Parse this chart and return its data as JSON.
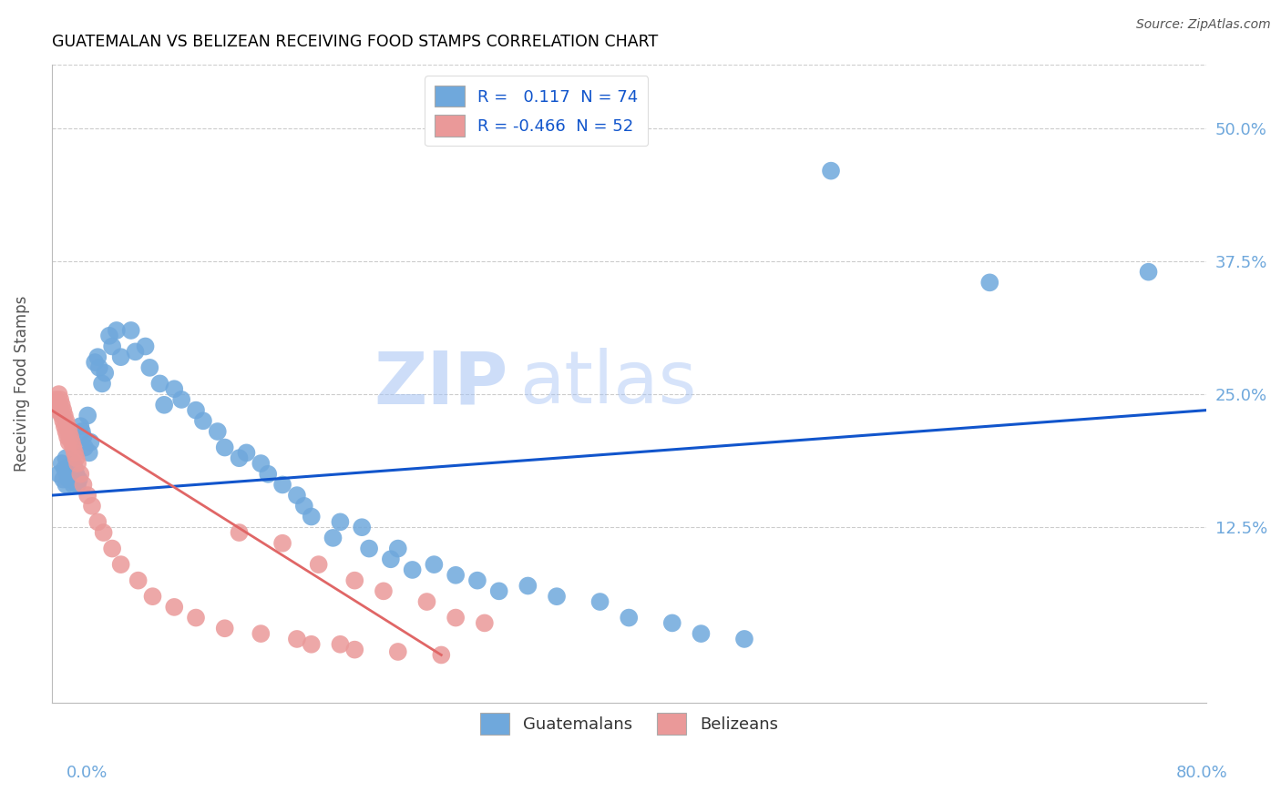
{
  "title": "GUATEMALAN VS BELIZEAN RECEIVING FOOD STAMPS CORRELATION CHART",
  "source": "Source: ZipAtlas.com",
  "ylabel": "Receiving Food Stamps",
  "ytick_labels": [
    "12.5%",
    "25.0%",
    "37.5%",
    "50.0%"
  ],
  "ytick_values": [
    0.125,
    0.25,
    0.375,
    0.5
  ],
  "xlim": [
    0.0,
    0.8
  ],
  "ylim": [
    -0.04,
    0.56
  ],
  "blue_color": "#6fa8dc",
  "pink_color": "#ea9999",
  "blue_line_color": "#1155cc",
  "pink_line_color": "#e06666",
  "background_color": "#ffffff",
  "grid_color": "#cccccc",
  "axis_label_color": "#6fa8dc",
  "title_color": "#000000",
  "guat_points": [
    [
      0.005,
      0.175
    ],
    [
      0.007,
      0.185
    ],
    [
      0.008,
      0.17
    ],
    [
      0.009,
      0.18
    ],
    [
      0.01,
      0.19
    ],
    [
      0.01,
      0.165
    ],
    [
      0.011,
      0.175
    ],
    [
      0.012,
      0.17
    ],
    [
      0.013,
      0.18
    ],
    [
      0.014,
      0.175
    ],
    [
      0.015,
      0.185
    ],
    [
      0.015,
      0.165
    ],
    [
      0.016,
      0.18
    ],
    [
      0.017,
      0.175
    ],
    [
      0.018,
      0.165
    ],
    [
      0.019,
      0.17
    ],
    [
      0.02,
      0.22
    ],
    [
      0.021,
      0.215
    ],
    [
      0.022,
      0.21
    ],
    [
      0.023,
      0.2
    ],
    [
      0.025,
      0.23
    ],
    [
      0.026,
      0.195
    ],
    [
      0.027,
      0.205
    ],
    [
      0.03,
      0.28
    ],
    [
      0.032,
      0.285
    ],
    [
      0.033,
      0.275
    ],
    [
      0.035,
      0.26
    ],
    [
      0.037,
      0.27
    ],
    [
      0.04,
      0.305
    ],
    [
      0.042,
      0.295
    ],
    [
      0.045,
      0.31
    ],
    [
      0.048,
      0.285
    ],
    [
      0.055,
      0.31
    ],
    [
      0.058,
      0.29
    ],
    [
      0.065,
      0.295
    ],
    [
      0.068,
      0.275
    ],
    [
      0.075,
      0.26
    ],
    [
      0.078,
      0.24
    ],
    [
      0.085,
      0.255
    ],
    [
      0.09,
      0.245
    ],
    [
      0.1,
      0.235
    ],
    [
      0.105,
      0.225
    ],
    [
      0.115,
      0.215
    ],
    [
      0.12,
      0.2
    ],
    [
      0.13,
      0.19
    ],
    [
      0.135,
      0.195
    ],
    [
      0.145,
      0.185
    ],
    [
      0.15,
      0.175
    ],
    [
      0.16,
      0.165
    ],
    [
      0.17,
      0.155
    ],
    [
      0.175,
      0.145
    ],
    [
      0.18,
      0.135
    ],
    [
      0.195,
      0.115
    ],
    [
      0.2,
      0.13
    ],
    [
      0.215,
      0.125
    ],
    [
      0.22,
      0.105
    ],
    [
      0.235,
      0.095
    ],
    [
      0.24,
      0.105
    ],
    [
      0.25,
      0.085
    ],
    [
      0.265,
      0.09
    ],
    [
      0.28,
      0.08
    ],
    [
      0.295,
      0.075
    ],
    [
      0.31,
      0.065
    ],
    [
      0.33,
      0.07
    ],
    [
      0.35,
      0.06
    ],
    [
      0.38,
      0.055
    ],
    [
      0.4,
      0.04
    ],
    [
      0.43,
      0.035
    ],
    [
      0.45,
      0.025
    ],
    [
      0.48,
      0.02
    ],
    [
      0.54,
      0.46
    ],
    [
      0.65,
      0.355
    ],
    [
      0.76,
      0.365
    ]
  ],
  "beli_points": [
    [
      0.003,
      0.245
    ],
    [
      0.004,
      0.235
    ],
    [
      0.005,
      0.25
    ],
    [
      0.005,
      0.24
    ],
    [
      0.006,
      0.245
    ],
    [
      0.006,
      0.235
    ],
    [
      0.007,
      0.24
    ],
    [
      0.007,
      0.23
    ],
    [
      0.008,
      0.235
    ],
    [
      0.008,
      0.225
    ],
    [
      0.009,
      0.23
    ],
    [
      0.009,
      0.22
    ],
    [
      0.01,
      0.225
    ],
    [
      0.01,
      0.215
    ],
    [
      0.011,
      0.22
    ],
    [
      0.011,
      0.21
    ],
    [
      0.012,
      0.215
    ],
    [
      0.012,
      0.205
    ],
    [
      0.013,
      0.21
    ],
    [
      0.014,
      0.205
    ],
    [
      0.015,
      0.2
    ],
    [
      0.016,
      0.195
    ],
    [
      0.017,
      0.19
    ],
    [
      0.018,
      0.185
    ],
    [
      0.02,
      0.175
    ],
    [
      0.022,
      0.165
    ],
    [
      0.025,
      0.155
    ],
    [
      0.028,
      0.145
    ],
    [
      0.032,
      0.13
    ],
    [
      0.036,
      0.12
    ],
    [
      0.042,
      0.105
    ],
    [
      0.048,
      0.09
    ],
    [
      0.06,
      0.075
    ],
    [
      0.07,
      0.06
    ],
    [
      0.085,
      0.05
    ],
    [
      0.1,
      0.04
    ],
    [
      0.12,
      0.03
    ],
    [
      0.145,
      0.025
    ],
    [
      0.17,
      0.02
    ],
    [
      0.2,
      0.015
    ],
    [
      0.13,
      0.12
    ],
    [
      0.16,
      0.11
    ],
    [
      0.185,
      0.09
    ],
    [
      0.21,
      0.075
    ],
    [
      0.23,
      0.065
    ],
    [
      0.26,
      0.055
    ],
    [
      0.28,
      0.04
    ],
    [
      0.3,
      0.035
    ],
    [
      0.18,
      0.015
    ],
    [
      0.21,
      0.01
    ],
    [
      0.24,
      0.008
    ],
    [
      0.27,
      0.005
    ]
  ],
  "blue_regression": [
    0.0,
    0.8,
    0.155,
    0.235
  ],
  "pink_regression": [
    0.0,
    0.27,
    0.235,
    0.005
  ]
}
